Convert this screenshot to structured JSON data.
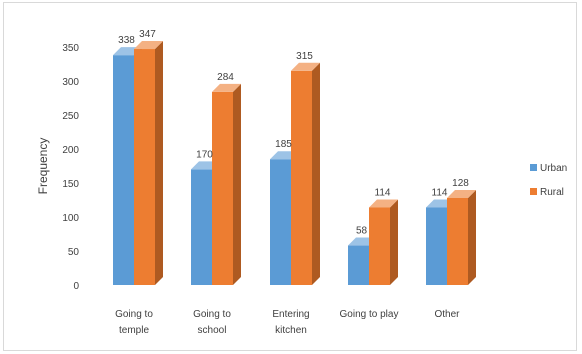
{
  "chart_data": {
    "type": "bar",
    "title": "",
    "xlabel": "",
    "ylabel": "Frequency",
    "ylim": [
      0,
      350
    ],
    "yticks": [
      0,
      50,
      100,
      150,
      200,
      250,
      300,
      350
    ],
    "categories": [
      [
        "Going to",
        "temple"
      ],
      [
        "Going to",
        "school"
      ],
      [
        "Entering",
        "kitchen"
      ],
      [
        "Going to play"
      ],
      [
        "Other"
      ]
    ],
    "series": [
      {
        "name": "Urban",
        "values": [
          338,
          170,
          185,
          58,
          114
        ],
        "labels": [
          "338",
          "170",
          "185",
          "58",
          "114"
        ]
      },
      {
        "name": "Rural",
        "values": [
          347,
          284,
          315,
          114,
          128
        ],
        "labels": [
          "347",
          "284",
          "315",
          "114",
          "128"
        ]
      }
    ],
    "grid": false,
    "bar_style": "3d",
    "legend": {
      "position": "right"
    },
    "colors": {
      "Urban": {
        "front": "#5b9bd5",
        "side": "#41729f",
        "top": "#9dc3e6"
      },
      "Rural": {
        "front": "#ed7d31",
        "side": "#ae5a21",
        "top": "#f4b183"
      }
    }
  }
}
